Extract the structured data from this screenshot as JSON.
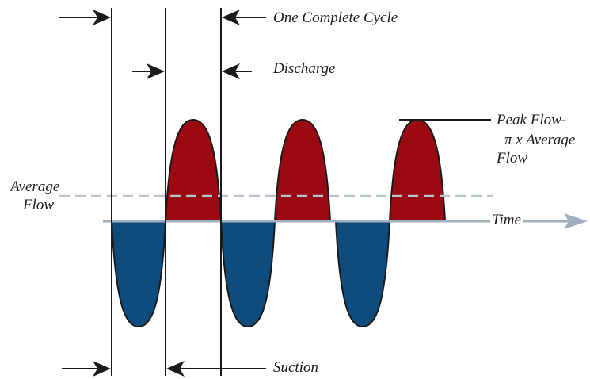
{
  "labels": {
    "cycle": "One Complete Cycle",
    "discharge": "Discharge",
    "suction": "Suction",
    "peak_line1": "Peak Flow-",
    "peak_line2": "π x Average",
    "peak_line3": "Flow",
    "avg_line1": "Average",
    "avg_line2": "Flow",
    "time": "Time"
  },
  "colors": {
    "discharge_fill": "#9b0a12",
    "suction_fill": "#0f4c7e",
    "axis": "#9fb0c0",
    "average_line": "#b9c4ce",
    "line": "#1a1a1a"
  }
}
